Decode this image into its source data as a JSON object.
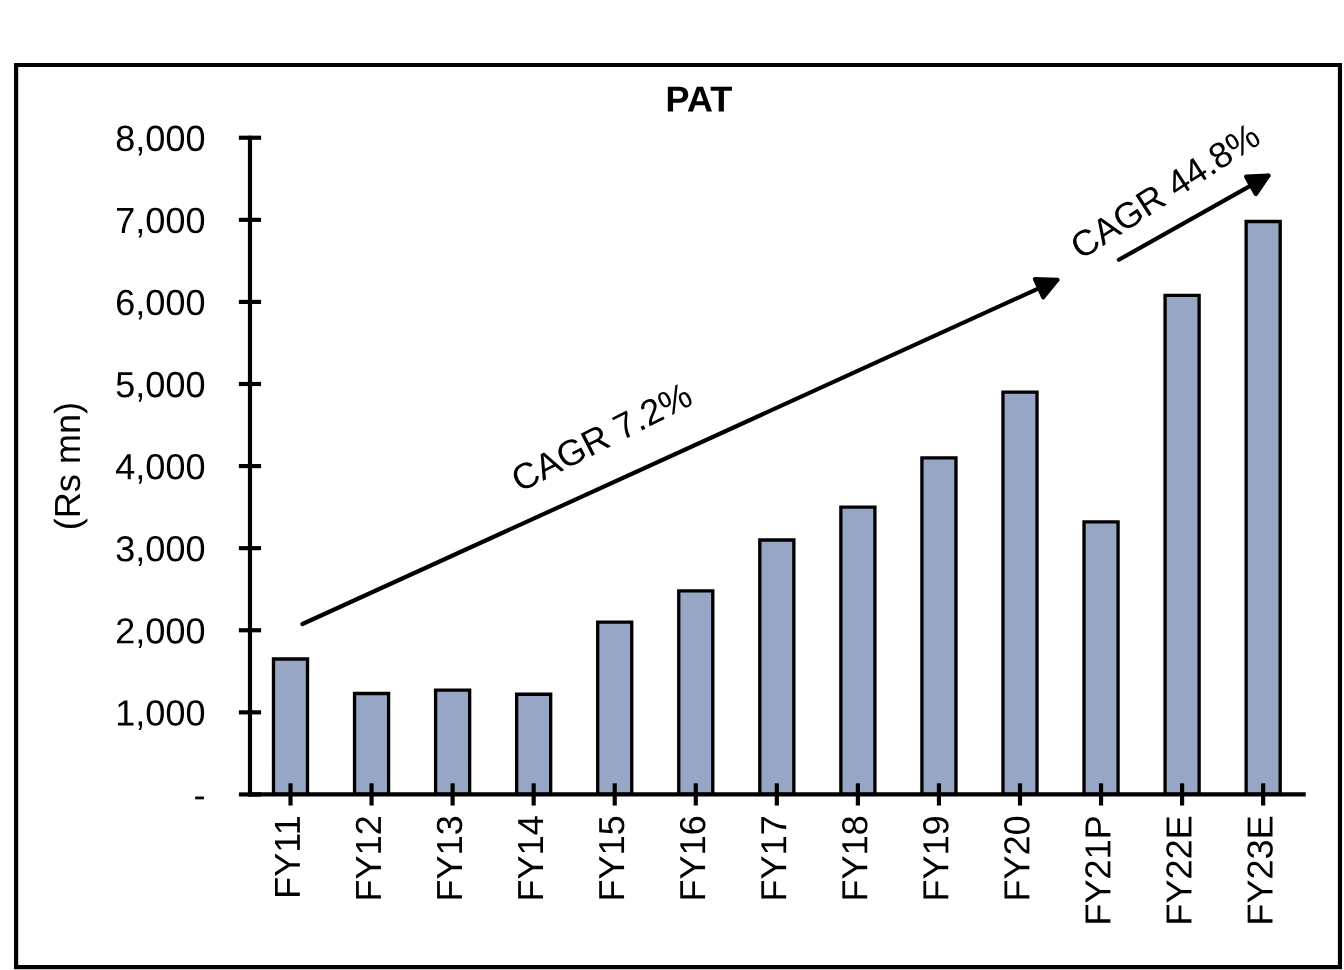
{
  "chart_data": {
    "type": "bar",
    "title": "PAT",
    "ylabel": "(Rs mn)",
    "categories": [
      "FY11",
      "FY12",
      "FY13",
      "FY14",
      "FY15",
      "FY16",
      "FY17",
      "FY18",
      "FY19",
      "FY20",
      "FY21P",
      "FY22E",
      "FY23E"
    ],
    "series": [
      {
        "color": "#97a6c4",
        "values": [
          1650,
          1230,
          1270,
          1220,
          2100,
          2480,
          3100,
          3500,
          4100,
          4900,
          3320,
          6080,
          6980
        ]
      }
    ],
    "ylim": [
      0,
      8000
    ],
    "yticks": [
      {
        "value": 0,
        "label": "-"
      },
      {
        "value": 1000,
        "label": "1,000"
      },
      {
        "value": 2000,
        "label": "2,000"
      },
      {
        "value": 3000,
        "label": "3,000"
      },
      {
        "value": 4000,
        "label": "4,000"
      },
      {
        "value": 5000,
        "label": "5,000"
      },
      {
        "value": 6000,
        "label": "6,000"
      },
      {
        "value": 7000,
        "label": "7,000"
      },
      {
        "value": 8000,
        "label": "8,000"
      }
    ],
    "annotations": [
      "CAGR 7.2%",
      "CAGR 44.8%"
    ],
    "grid": false,
    "legend": false
  }
}
